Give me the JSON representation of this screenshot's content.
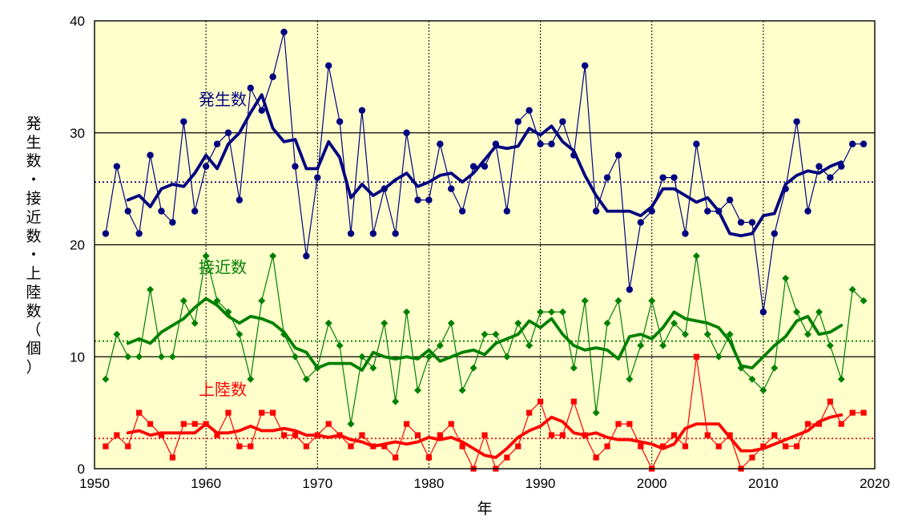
{
  "chart_data": {
    "type": "line",
    "xlabel": "年",
    "ylabel": "発生数・接近数・上陸数（個）",
    "xlim": [
      1950,
      2020
    ],
    "ylim": [
      0,
      40
    ],
    "xticks": [
      1950,
      1960,
      1970,
      1980,
      1990,
      2000,
      2010,
      2020
    ],
    "yticks": [
      0,
      10,
      20,
      30,
      40
    ],
    "grid": true,
    "legend": "inline labels",
    "plot_background": "#ffffcc",
    "series": [
      {
        "name": "発生数",
        "color": "#000080",
        "x": [
          1951,
          1952,
          1953,
          1954,
          1955,
          1956,
          1957,
          1958,
          1959,
          1960,
          1961,
          1962,
          1963,
          1964,
          1965,
          1966,
          1967,
          1968,
          1969,
          1970,
          1971,
          1972,
          1973,
          1974,
          1975,
          1976,
          1977,
          1978,
          1979,
          1980,
          1981,
          1982,
          1983,
          1984,
          1985,
          1986,
          1987,
          1988,
          1989,
          1990,
          1991,
          1992,
          1993,
          1994,
          1995,
          1996,
          1997,
          1998,
          1999,
          2000,
          2001,
          2002,
          2003,
          2004,
          2005,
          2006,
          2007,
          2008,
          2009,
          2010,
          2011,
          2012,
          2013,
          2014,
          2015,
          2016,
          2017,
          2018,
          2019
        ],
        "values": [
          21,
          27,
          23,
          21,
          28,
          23,
          22,
          31,
          23,
          27,
          29,
          30,
          24,
          34,
          32,
          35,
          39,
          27,
          19,
          26,
          36,
          31,
          21,
          32,
          21,
          25,
          21,
          30,
          24,
          24,
          29,
          25,
          23,
          27,
          27,
          29,
          23,
          31,
          32,
          29,
          29,
          31,
          28,
          36,
          23,
          26,
          28,
          16,
          22,
          23,
          26,
          26,
          21,
          29,
          23,
          23,
          24,
          22,
          22,
          14,
          21,
          25,
          31,
          23,
          27,
          26,
          27,
          29,
          29
        ],
        "average": 25.6,
        "moving_average": {
          "x": [
            1953,
            1954,
            1955,
            1956,
            1957,
            1958,
            1959,
            1960,
            1961,
            1962,
            1963,
            1964,
            1965,
            1966,
            1967,
            1968,
            1969,
            1970,
            1971,
            1972,
            1973,
            1974,
            1975,
            1976,
            1977,
            1978,
            1979,
            1980,
            1981,
            1982,
            1983,
            1984,
            1985,
            1986,
            1987,
            1988,
            1989,
            1990,
            1991,
            1992,
            1993,
            1994,
            1995,
            1996,
            1997,
            1998,
            1999,
            2000,
            2001,
            2002,
            2003,
            2004,
            2005,
            2006,
            2007,
            2008,
            2009,
            2010,
            2011,
            2012,
            2013,
            2014,
            2015,
            2016,
            2017
          ],
          "values": [
            24,
            24.4,
            23.4,
            25,
            25.4,
            25.2,
            26.4,
            28,
            26.8,
            29,
            30,
            31.8,
            33.4,
            30.4,
            29.2,
            29.4,
            26.8,
            26.8,
            29.2,
            27.8,
            24.2,
            25.4,
            24.4,
            25,
            25.8,
            26.4,
            25.2,
            25.6,
            26.2,
            26.4,
            25.6,
            26.4,
            27.6,
            28.8,
            28.6,
            28.8,
            30.4,
            29.8,
            30.6,
            29.2,
            28.4,
            26.2,
            24.4,
            23,
            23,
            23,
            22.6,
            23.4,
            25,
            25,
            24.4,
            23.8,
            24.2,
            23,
            21,
            20.8,
            21,
            22.6,
            22.8,
            25.4,
            26.2,
            26.6,
            26.4,
            27,
            27.4
          ]
        }
      },
      {
        "name": "接近数",
        "color": "#008000",
        "x": [
          1951,
          1952,
          1953,
          1954,
          1955,
          1956,
          1957,
          1958,
          1959,
          1960,
          1961,
          1962,
          1963,
          1964,
          1965,
          1966,
          1967,
          1968,
          1969,
          1970,
          1971,
          1972,
          1973,
          1974,
          1975,
          1976,
          1977,
          1978,
          1979,
          1980,
          1981,
          1982,
          1983,
          1984,
          1985,
          1986,
          1987,
          1988,
          1989,
          1990,
          1991,
          1992,
          1993,
          1994,
          1995,
          1996,
          1997,
          1998,
          1999,
          2000,
          2001,
          2002,
          2003,
          2004,
          2005,
          2006,
          2007,
          2008,
          2009,
          2010,
          2011,
          2012,
          2013,
          2014,
          2015,
          2016,
          2017,
          2018,
          2019
        ],
        "values": [
          8,
          12,
          10,
          10,
          16,
          10,
          10,
          15,
          13,
          19,
          15,
          14,
          12,
          8,
          15,
          19,
          12,
          10,
          8,
          9,
          13,
          11,
          4,
          10,
          9,
          13,
          6,
          14,
          7,
          10,
          11,
          13,
          7,
          9,
          12,
          12,
          10,
          13,
          11,
          14,
          14,
          14,
          9,
          15,
          5,
          13,
          15,
          8,
          11,
          15,
          11,
          13,
          12,
          19,
          12,
          10,
          12,
          9,
          8,
          7,
          9,
          17,
          14,
          12,
          14,
          11,
          8,
          16,
          15
        ],
        "average": 11.4,
        "moving_average": {
          "x": [
            1953,
            1954,
            1955,
            1956,
            1957,
            1958,
            1959,
            1960,
            1961,
            1962,
            1963,
            1964,
            1965,
            1966,
            1967,
            1968,
            1969,
            1970,
            1971,
            1972,
            1973,
            1974,
            1975,
            1976,
            1977,
            1978,
            1979,
            1980,
            1981,
            1982,
            1983,
            1984,
            1985,
            1986,
            1987,
            1988,
            1989,
            1990,
            1991,
            1992,
            1993,
            1994,
            1995,
            1996,
            1997,
            1998,
            1999,
            2000,
            2001,
            2002,
            2003,
            2004,
            2005,
            2006,
            2007,
            2008,
            2009,
            2010,
            2011,
            2012,
            2013,
            2014,
            2015,
            2016,
            2017
          ],
          "values": [
            11.2,
            11.6,
            11.2,
            12.2,
            12.8,
            13.4,
            14.4,
            15.2,
            14.6,
            13.6,
            13,
            13.6,
            13.4,
            13,
            12.2,
            10.8,
            10.4,
            9,
            9.4,
            9.4,
            9.4,
            8.8,
            10.4,
            10,
            9.8,
            10,
            9.8,
            10.6,
            9.6,
            10,
            10.4,
            10.6,
            10.2,
            11.2,
            11.6,
            12,
            13.2,
            12.6,
            13.4,
            12,
            11,
            10.6,
            10.8,
            10.6,
            9.8,
            11.8,
            12,
            11.6,
            12.6,
            14,
            13.4,
            13.2,
            13,
            12.6,
            11.4,
            9.2,
            9,
            10,
            11,
            11.8,
            13.2,
            13.6,
            12,
            12.2,
            12.8
          ]
        }
      },
      {
        "name": "上陸数",
        "color": "#ff0000",
        "x": [
          1951,
          1952,
          1953,
          1954,
          1955,
          1956,
          1957,
          1958,
          1959,
          1960,
          1961,
          1962,
          1963,
          1964,
          1965,
          1966,
          1967,
          1968,
          1969,
          1970,
          1971,
          1972,
          1973,
          1974,
          1975,
          1976,
          1977,
          1978,
          1979,
          1980,
          1981,
          1982,
          1983,
          1984,
          1985,
          1986,
          1987,
          1988,
          1989,
          1990,
          1991,
          1992,
          1993,
          1994,
          1995,
          1996,
          1997,
          1998,
          1999,
          2000,
          2001,
          2002,
          2003,
          2004,
          2005,
          2006,
          2007,
          2008,
          2009,
          2010,
          2011,
          2012,
          2013,
          2014,
          2015,
          2016,
          2017,
          2018,
          2019
        ],
        "values": [
          2,
          3,
          2,
          5,
          4,
          3,
          1,
          4,
          4,
          4,
          3,
          5,
          2,
          2,
          5,
          5,
          3,
          3,
          2,
          3,
          4,
          3,
          2,
          3,
          2,
          2,
          1,
          4,
          3,
          1,
          3,
          4,
          2,
          0,
          3,
          0,
          1,
          2,
          5,
          6,
          3,
          3,
          6,
          3,
          1,
          2,
          4,
          4,
          2,
          0,
          2,
          3,
          2,
          10,
          3,
          2,
          3,
          0,
          1,
          2,
          3,
          2,
          2,
          4,
          4,
          6,
          4,
          5,
          5
        ],
        "average": 2.7,
        "moving_average": {
          "x": [
            1953,
            1954,
            1955,
            1956,
            1957,
            1958,
            1959,
            1960,
            1961,
            1962,
            1963,
            1964,
            1965,
            1966,
            1967,
            1968,
            1969,
            1970,
            1971,
            1972,
            1973,
            1974,
            1975,
            1976,
            1977,
            1978,
            1979,
            1980,
            1981,
            1982,
            1983,
            1984,
            1985,
            1986,
            1987,
            1988,
            1989,
            1990,
            1991,
            1992,
            1993,
            1994,
            1995,
            1996,
            1997,
            1998,
            1999,
            2000,
            2001,
            2002,
            2003,
            2004,
            2005,
            2006,
            2007,
            2008,
            2009,
            2010,
            2011,
            2012,
            2013,
            2014,
            2015,
            2016,
            2017
          ],
          "values": [
            3.2,
            3.4,
            3,
            3.2,
            3.2,
            3.2,
            3.2,
            4,
            3.2,
            3.2,
            3.4,
            3.8,
            3.4,
            3.4,
            3.6,
            3.4,
            3,
            3,
            2.8,
            3,
            2.6,
            2.4,
            2,
            2.2,
            2.4,
            2.2,
            2.4,
            2.8,
            2.6,
            2.8,
            2.4,
            1.8,
            1.2,
            1,
            1.8,
            2.8,
            3.4,
            3.8,
            4.6,
            4.2,
            3.2,
            3,
            3.2,
            2.8,
            2.6,
            2.6,
            2.4,
            2.2,
            1.8,
            2.2,
            3.6,
            4,
            4,
            4,
            2.8,
            1.6,
            1.6,
            1.8,
            2.2,
            2.6,
            3,
            3.4,
            4.2,
            4.6,
            4.8
          ]
        }
      }
    ]
  }
}
